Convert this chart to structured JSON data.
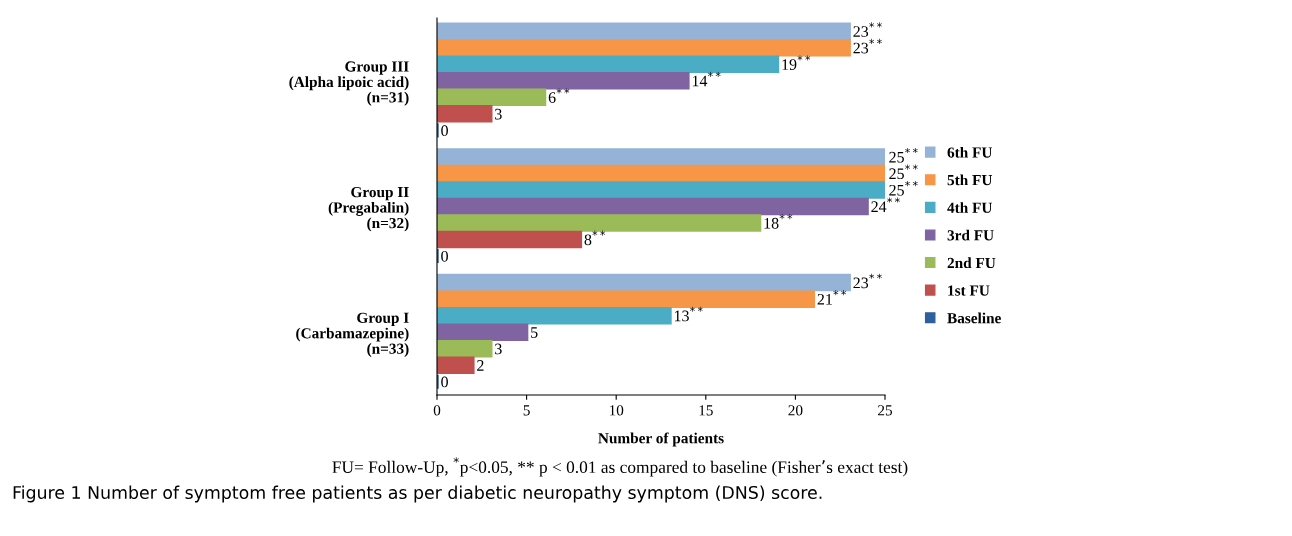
{
  "chart_data": {
    "type": "bar",
    "orientation": "horizontal",
    "title": "Figure 1 Number of symptom free patients as per diabetic neuropathy symptom (DNS) score.",
    "xlabel": "Number of patients",
    "categories": [
      "Group III\n(Alpha lipoic acid)\n(n=31)",
      "Group II\n(Pregabalin)\n(n=32)",
      "Group I\n(Carbamazepine)\n(n=33)"
    ],
    "series": [
      {
        "name": "6th FU",
        "color": "#95b3d7",
        "values": [
          23,
          25,
          23
        ],
        "value_labels": [
          "23$^{**}$",
          "25$^{**}$",
          "23$^{**}$"
        ]
      },
      {
        "name": "5th FU",
        "color": "#f79646",
        "values": [
          23,
          25,
          21
        ],
        "value_labels": [
          "23$^{**}$",
          "25$^{**}$",
          "21$^{**}$"
        ]
      },
      {
        "name": "4th FU",
        "color": "#4bacc6",
        "values": [
          19,
          25,
          13
        ],
        "value_labels": [
          "19$^{**}$",
          "25$^{**}$",
          "13$^{**}$"
        ]
      },
      {
        "name": "3rd FU",
        "color": "#8064a2",
        "values": [
          14,
          24,
          5
        ],
        "value_labels": [
          "14$^{**}$",
          "24$^{**}$",
          "5"
        ]
      },
      {
        "name": "2nd FU",
        "color": "#9bbb59",
        "values": [
          6,
          18,
          3
        ],
        "value_labels": [
          "6$^{**}$",
          "18$^{**}$",
          "3"
        ]
      },
      {
        "name": "1st FU",
        "color": "#c0504d",
        "values": [
          3,
          8,
          2
        ],
        "value_labels": [
          "3",
          "8$^{**}$",
          "2"
        ]
      },
      {
        "name": "Baseline",
        "color": "#2e5f9e",
        "values": [
          0,
          0,
          0
        ],
        "value_labels": [
          "0",
          "0",
          "0"
        ]
      }
    ],
    "xlim": [
      0,
      25
    ],
    "xticks": [
      0,
      5,
      10,
      15,
      20,
      25
    ],
    "grid": false,
    "legend": "right",
    "annotations": [
      "FU= Follow-Up, $^{*}$p<0.05, ** p < 0.01 as compared to baseline (Fisher’s exact test)"
    ]
  }
}
